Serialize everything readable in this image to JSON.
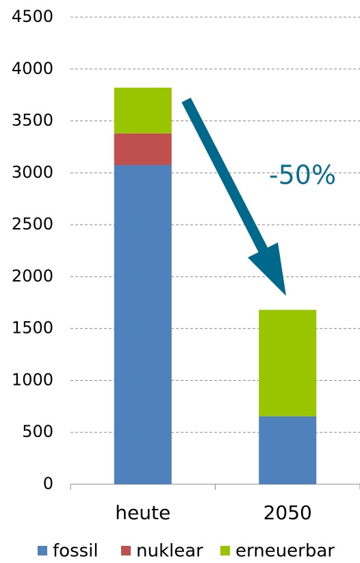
{
  "chart_data": {
    "type": "stacked_bar",
    "categories": [
      "heute",
      "2050"
    ],
    "series": [
      {
        "name": "fossil",
        "color": "#4f81bd",
        "values": [
          3075,
          655
        ]
      },
      {
        "name": "nuklear",
        "color": "#c0504d",
        "values": [
          305,
          0
        ]
      },
      {
        "name": "erneuerbar",
        "color": "#99c400",
        "values": [
          440,
          1025
        ]
      }
    ],
    "ylim": [
      0,
      4500
    ],
    "yticks": [
      0,
      500,
      1000,
      1500,
      2000,
      2500,
      3000,
      3500,
      4000,
      4500
    ],
    "grid": true,
    "legend": "bottom",
    "annotation": "-50%"
  }
}
